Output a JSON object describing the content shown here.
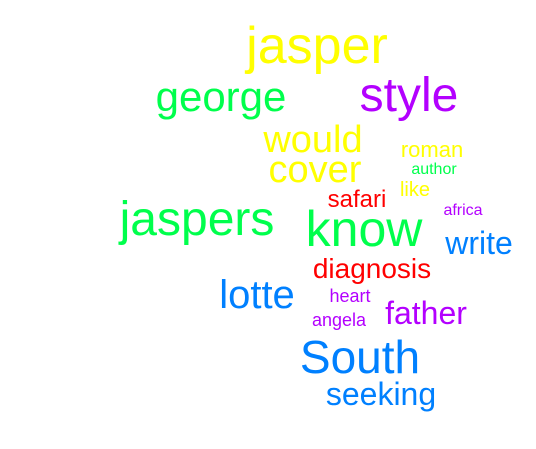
{
  "words": [
    {
      "text": "jasper",
      "weight": 52,
      "color": "#ffff00"
    },
    {
      "text": "style",
      "weight": 48,
      "color": "#b300ff"
    },
    {
      "text": "george",
      "weight": 42,
      "color": "#00ff4c"
    },
    {
      "text": "would",
      "weight": 38,
      "color": "#ffff00"
    },
    {
      "text": "cover",
      "weight": 38,
      "color": "#ffff00"
    },
    {
      "text": "roman",
      "weight": 22,
      "color": "#ffff00"
    },
    {
      "text": "author",
      "weight": 16,
      "color": "#00ff4c"
    },
    {
      "text": "like",
      "weight": 20,
      "color": "#ffff00"
    },
    {
      "text": "safari",
      "weight": 24,
      "color": "#ff0000"
    },
    {
      "text": "africa",
      "weight": 16,
      "color": "#b300ff"
    },
    {
      "text": "jaspers",
      "weight": 48,
      "color": "#00ff4c"
    },
    {
      "text": "know",
      "weight": 50,
      "color": "#00ff4c"
    },
    {
      "text": "write",
      "weight": 32,
      "color": "#0080ff"
    },
    {
      "text": "diagnosis",
      "weight": 28,
      "color": "#ff0000"
    },
    {
      "text": "lotte",
      "weight": 40,
      "color": "#0080ff"
    },
    {
      "text": "heart",
      "weight": 18,
      "color": "#b300ff"
    },
    {
      "text": "father",
      "weight": 32,
      "color": "#b300ff"
    },
    {
      "text": "angela",
      "weight": 18,
      "color": "#b300ff"
    },
    {
      "text": "South",
      "weight": 46,
      "color": "#0080ff"
    },
    {
      "text": "seeking",
      "weight": 32,
      "color": "#0080ff"
    }
  ]
}
